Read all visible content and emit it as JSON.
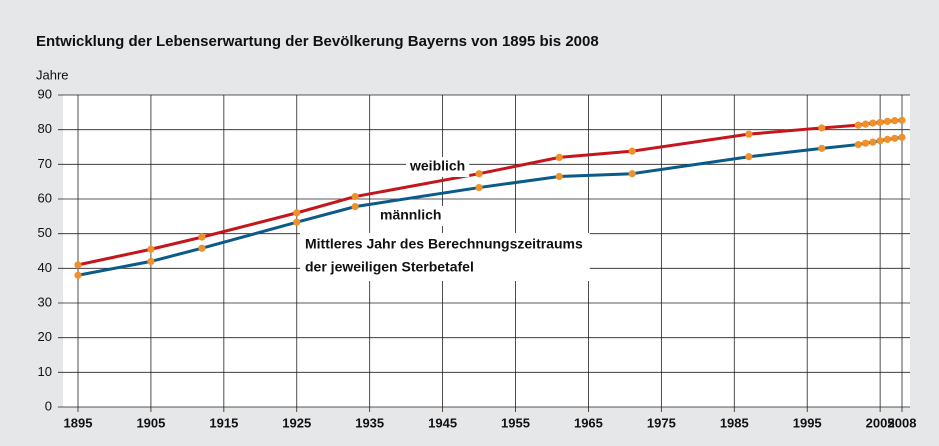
{
  "chart_data": {
    "type": "line",
    "title": "Entwicklung der Lebenserwartung der Bevölkerung Bayerns von 1895 bis 2008",
    "y_label": "Jahre",
    "x": [
      1895,
      1905,
      1912,
      1925,
      1933,
      1950,
      1961,
      1971,
      1987,
      1997,
      2002,
      2003,
      2004,
      2005,
      2006,
      2007,
      2008
    ],
    "series": [
      {
        "name": "weiblich",
        "color": "#c4161c",
        "values": [
          41,
          45.5,
          49,
          56,
          60.7,
          67.3,
          72,
          73.8,
          78.7,
          80.5,
          81.3,
          81.6,
          81.9,
          82.1,
          82.4,
          82.6,
          82.7
        ]
      },
      {
        "name": "männlich",
        "color": "#0a5a8a",
        "values": [
          38,
          42,
          45.8,
          53.3,
          57.8,
          63.3,
          66.5,
          67.3,
          72.2,
          74.6,
          75.7,
          76.1,
          76.4,
          76.8,
          77.2,
          77.5,
          77.8
        ]
      }
    ],
    "marker_color": "#f0902a",
    "annotation": {
      "lines": [
        "Mittleres Jahr des Berechnungszeitraums",
        "der jeweiligen Sterbetafel"
      ],
      "color": "#f0902a"
    },
    "xlim": [
      1895,
      2008
    ],
    "xticks": [
      1895,
      1905,
      1915,
      1925,
      1935,
      1945,
      1955,
      1965,
      1975,
      1985,
      1995,
      2005,
      2008
    ],
    "ylim": [
      0,
      90
    ],
    "yticks": [
      0,
      10,
      20,
      30,
      40,
      50,
      60,
      70,
      80,
      90
    ],
    "grid": true
  }
}
